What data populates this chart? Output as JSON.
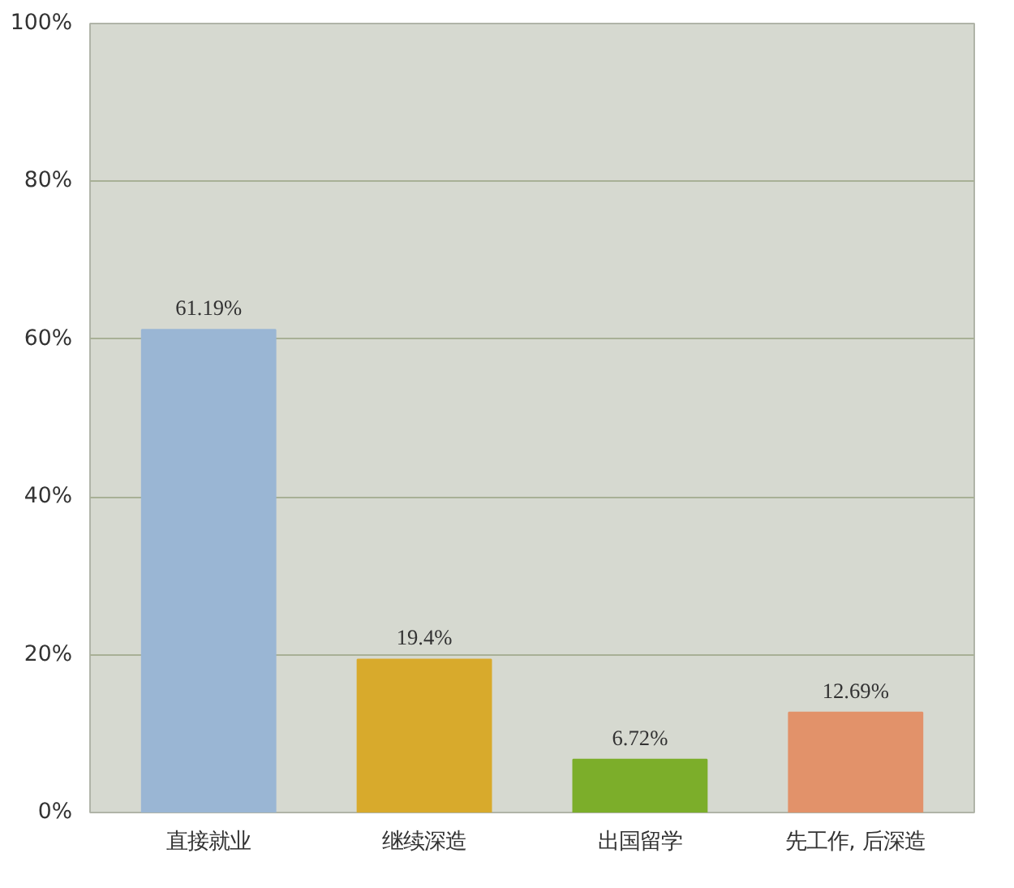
{
  "chart_data": {
    "type": "bar",
    "categories": [
      "直接就业",
      "继续深造",
      "出国留学",
      "先工作, 后深造"
    ],
    "values": [
      61.19,
      19.4,
      6.72,
      12.69
    ],
    "colors": [
      "#9ab6d4",
      "#d8aa2c",
      "#7cae2a",
      "#e2926a"
    ],
    "value_labels": [
      "61.19%",
      "19.4%",
      "6.72%",
      "12.69%"
    ],
    "ylim": [
      0,
      100
    ],
    "yticks": [
      {
        "value": 0,
        "label": "0%"
      },
      {
        "value": 20,
        "label": "20%"
      },
      {
        "value": 40,
        "label": "40%"
      },
      {
        "value": 60,
        "label": "60%"
      },
      {
        "value": 80,
        "label": "80%"
      },
      {
        "value": 100,
        "label": "100%"
      }
    ],
    "grid": "y"
  }
}
